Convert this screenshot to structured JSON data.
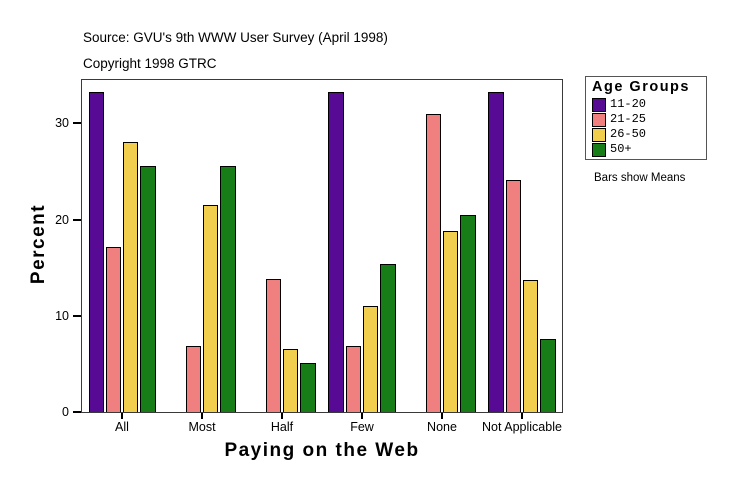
{
  "header": {
    "source": "Source: GVU's 9th WWW User Survey (April 1998)",
    "copyright": "Copyright 1998 GTRC"
  },
  "chart_data": {
    "type": "bar",
    "title": "",
    "categories": [
      "All",
      "Most",
      "Half",
      "Few",
      "None",
      "Not Applicable"
    ],
    "series": [
      {
        "name": "11-20",
        "color": "#570B94",
        "values": [
          33.3,
          null,
          null,
          33.3,
          null,
          33.3
        ]
      },
      {
        "name": "21-25",
        "color": "#F08080",
        "values": [
          17.2,
          6.9,
          13.8,
          6.9,
          31.0,
          24.1
        ]
      },
      {
        "name": "26-50",
        "color": "#F2CE4E",
        "values": [
          28.1,
          21.5,
          6.6,
          11.0,
          18.8,
          13.7
        ]
      },
      {
        "name": "50+",
        "color": "#177D17",
        "values": [
          25.6,
          25.6,
          5.1,
          15.4,
          20.5,
          7.6
        ]
      }
    ],
    "xlabel": "Paying on the Web",
    "ylabel": "Percent",
    "ylim": [
      0,
      34.5
    ],
    "yticks": [
      0,
      10,
      20,
      30
    ],
    "grid": false,
    "legend": {
      "title": "Age Groups",
      "position": "right",
      "note": "Bars show Means"
    }
  },
  "colors": {
    "frame_border": "#3a3a3a",
    "legend_border": "#555555",
    "background": "#ffffff"
  }
}
